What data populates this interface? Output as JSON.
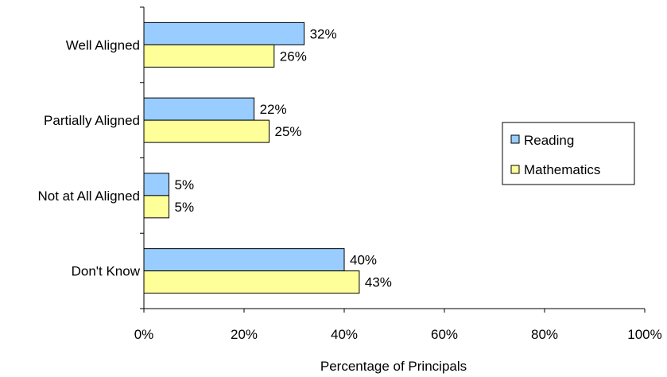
{
  "chart_data": {
    "type": "bar",
    "orientation": "horizontal",
    "categories": [
      "Well Aligned",
      "Partially Aligned",
      "Not at All Aligned",
      "Don't Know"
    ],
    "series": [
      {
        "name": "Reading",
        "values": [
          32,
          22,
          5,
          40
        ],
        "labels": [
          "32%",
          "22%",
          "5%",
          "40%"
        ],
        "color": "#99CCFF"
      },
      {
        "name": "Mathematics",
        "values": [
          26,
          25,
          5,
          43
        ],
        "labels": [
          "26%",
          "25%",
          "5%",
          "43%"
        ],
        "color": "#FFFF99"
      }
    ],
    "xlabel": "Percentage of Principals",
    "ylabel": "",
    "xlim": [
      0,
      100
    ],
    "xticks": [
      0,
      20,
      40,
      60,
      80,
      100
    ],
    "xtick_labels": [
      "0%",
      "20%",
      "40%",
      "60%",
      "80%",
      "100%"
    ],
    "grid": false,
    "legend": "right"
  }
}
